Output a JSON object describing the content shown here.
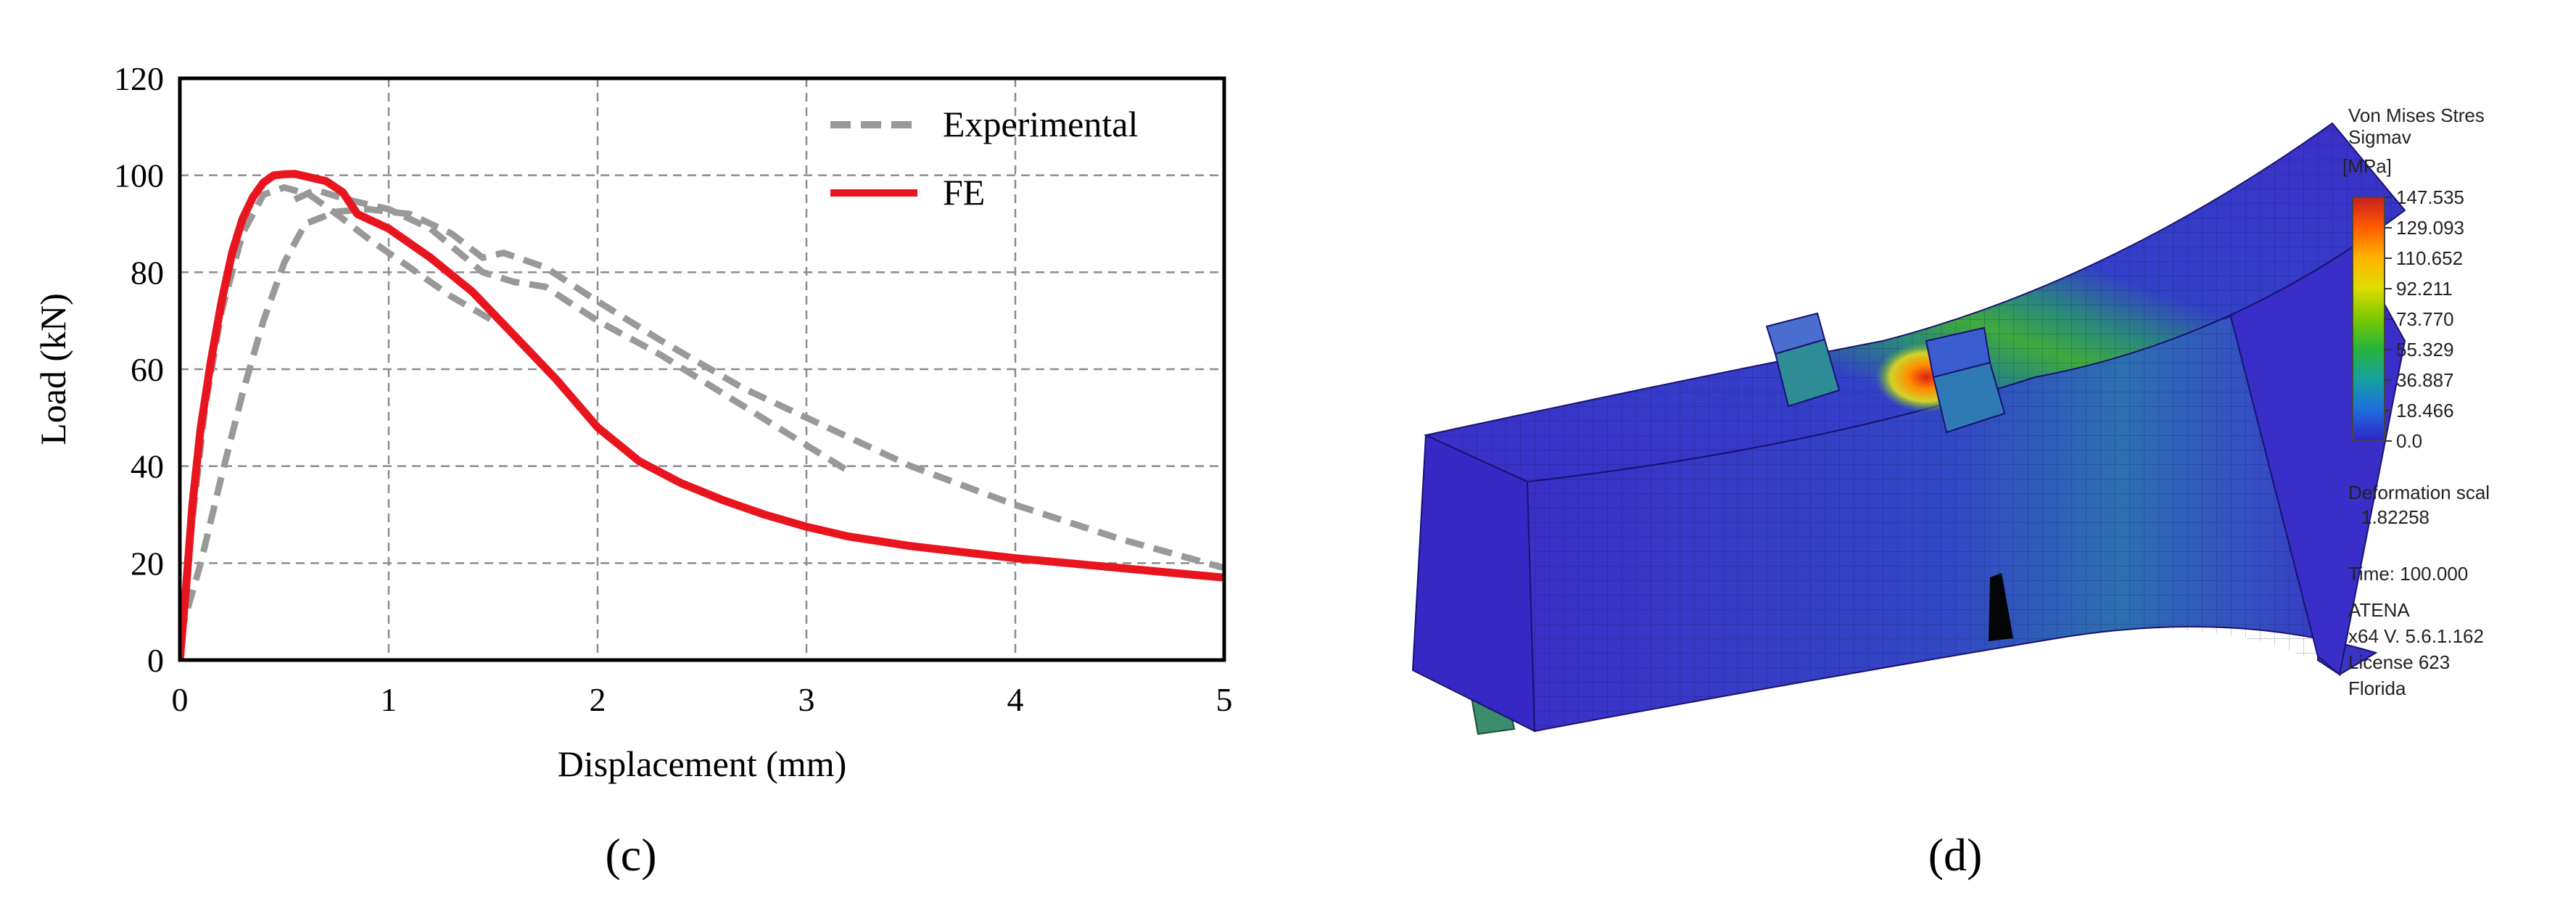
{
  "chart_data": {
    "type": "line",
    "title": "",
    "xlabel": "Displacement (mm)",
    "ylabel": "Load (kN)",
    "xlim": [
      0,
      5
    ],
    "ylim": [
      0,
      120
    ],
    "xticks": [
      0,
      1,
      2,
      3,
      4,
      5
    ],
    "yticks": [
      0,
      20,
      40,
      60,
      80,
      100,
      120
    ],
    "grid": true,
    "legend_position": "top-right",
    "series": [
      {
        "name": "Experimental",
        "style": "dashed",
        "color": "#999999",
        "curves": [
          [
            [
              0,
              0
            ],
            [
              0.05,
              25
            ],
            [
              0.12,
              52
            ],
            [
              0.2,
              72
            ],
            [
              0.3,
              88
            ],
            [
              0.4,
              96
            ],
            [
              0.5,
              97.5
            ],
            [
              0.62,
              96
            ],
            [
              0.75,
              92
            ],
            [
              0.9,
              87
            ],
            [
              1.1,
              81
            ],
            [
              1.3,
              75
            ],
            [
              1.5,
              70
            ]
          ],
          [
            [
              0,
              5
            ],
            [
              0.1,
              20
            ],
            [
              0.2,
              38
            ],
            [
              0.3,
              55
            ],
            [
              0.4,
              70
            ],
            [
              0.5,
              82
            ],
            [
              0.6,
              90
            ],
            [
              0.75,
              92.5
            ],
            [
              0.9,
              93
            ],
            [
              1.1,
              92
            ],
            [
              1.3,
              88
            ],
            [
              1.45,
              83
            ],
            [
              1.55,
              84
            ],
            [
              1.75,
              81
            ],
            [
              2.0,
              74
            ],
            [
              2.3,
              66
            ],
            [
              2.7,
              56
            ],
            [
              3.0,
              50
            ],
            [
              3.5,
              40
            ],
            [
              4.0,
              32
            ],
            [
              4.5,
              25
            ],
            [
              5.0,
              19
            ]
          ],
          [
            [
              0.55,
              95
            ],
            [
              0.65,
              97
            ],
            [
              0.8,
              95
            ],
            [
              1.0,
              93
            ],
            [
              1.2,
              89
            ],
            [
              1.45,
              80
            ],
            [
              1.6,
              78
            ],
            [
              1.75,
              77
            ],
            [
              2.0,
              70
            ],
            [
              2.3,
              63
            ],
            [
              2.6,
              55
            ],
            [
              2.9,
              47
            ],
            [
              3.2,
              39
            ]
          ]
        ]
      },
      {
        "name": "FE",
        "style": "solid",
        "color": "#e8141e",
        "curves": [
          [
            [
              0,
              0
            ],
            [
              0.03,
              15
            ],
            [
              0.06,
              32
            ],
            [
              0.1,
              48
            ],
            [
              0.15,
              62
            ],
            [
              0.2,
              74
            ],
            [
              0.25,
              84
            ],
            [
              0.3,
              91
            ],
            [
              0.35,
              95.5
            ],
            [
              0.4,
              98.5
            ],
            [
              0.45,
              100
            ],
            [
              0.5,
              100.2
            ],
            [
              0.55,
              100.3
            ],
            [
              0.6,
              99.8
            ],
            [
              0.7,
              98.8
            ],
            [
              0.78,
              96.5
            ],
            [
              0.85,
              92
            ],
            [
              1.0,
              89
            ],
            [
              1.2,
              83
            ],
            [
              1.4,
              76
            ],
            [
              1.6,
              67
            ],
            [
              1.8,
              58
            ],
            [
              2.0,
              48
            ],
            [
              2.2,
              41
            ],
            [
              2.4,
              36.5
            ],
            [
              2.6,
              33
            ],
            [
              2.8,
              30
            ],
            [
              3.0,
              27.5
            ],
            [
              3.2,
              25.5
            ],
            [
              3.5,
              23.5
            ],
            [
              4.0,
              21
            ],
            [
              4.5,
              19
            ],
            [
              5.0,
              17
            ]
          ]
        ]
      }
    ]
  },
  "panel_c_label": "(c)",
  "panel_d_label": "(d)",
  "fea": {
    "legend_title_1": "Von Mises Stres",
    "legend_title_2": "Sigmav",
    "unit": "[MPa]",
    "scale_values": [
      "147.535",
      "129.093",
      "110.652",
      "92.211",
      "73.770",
      "55.329",
      "36.887",
      "18.466",
      "0.0"
    ],
    "deformation_label": "Deformation scal",
    "deformation_value": "1.82258",
    "time_label": "Time: 100.000",
    "software": "ATENA",
    "version": "x64 V. 5.6.1.162",
    "license": "License 623",
    "location": "Florida",
    "colors": [
      "#c81e1e",
      "#ff5a00",
      "#ffa000",
      "#e6d200",
      "#8cc800",
      "#28b428",
      "#14a08c",
      "#1e78c8",
      "#2d46d2",
      "#3b2ec8"
    ]
  }
}
